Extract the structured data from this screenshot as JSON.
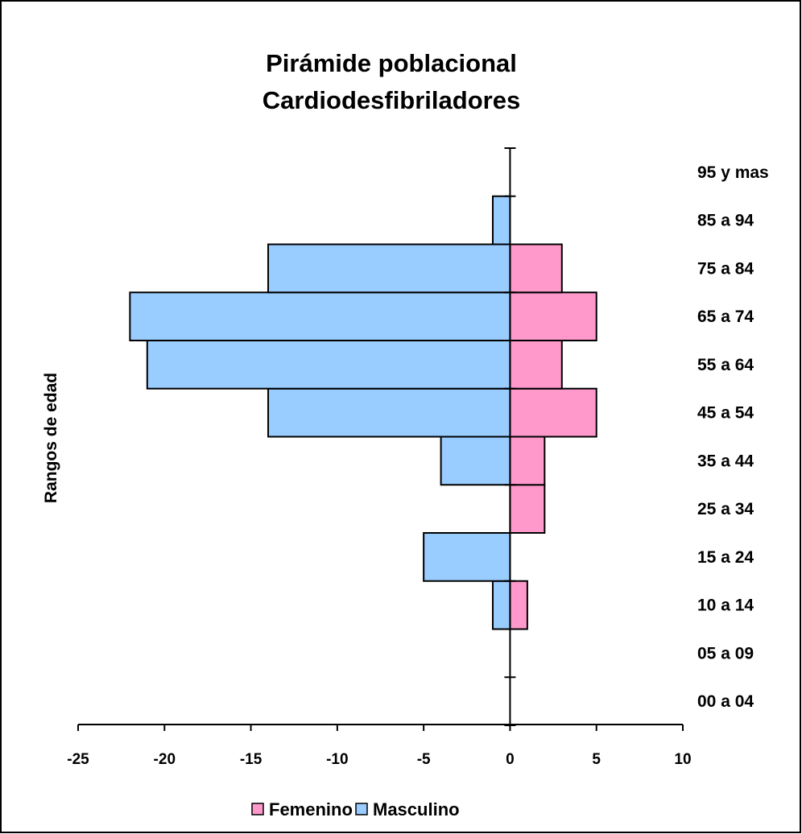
{
  "chart_data": {
    "type": "bar",
    "orientation": "horizontal",
    "title": "Pirámide poblacional",
    "subtitle": "Cardiodesfibriladores",
    "xlabel": "",
    "ylabel": "Rangos de edad",
    "xlim": [
      -25,
      10
    ],
    "xticks": [
      -25,
      -20,
      -15,
      -10,
      -5,
      0,
      5,
      10
    ],
    "categories": [
      "00 a 04",
      "05 a 09",
      "10 a 14",
      "15 a 24",
      "25 a 34",
      "35 a 44",
      "45 a 54",
      "55 a 64",
      "65 a 74",
      "75 a 84",
      "85 a 94",
      "95 y mas"
    ],
    "series": [
      {
        "name": "Femenino",
        "color": "#ff99cc",
        "values": [
          0,
          0,
          1,
          0,
          2,
          2,
          5,
          3,
          5,
          3,
          0,
          0
        ]
      },
      {
        "name": "Masculino",
        "color": "#99ccff",
        "values": [
          0,
          0,
          -1,
          -5,
          0,
          -4,
          -14,
          -21,
          -22,
          -14,
          -1,
          0
        ]
      }
    ],
    "legend": [
      "Femenino",
      "Masculino"
    ],
    "legend_position": "bottom",
    "grid": false
  }
}
